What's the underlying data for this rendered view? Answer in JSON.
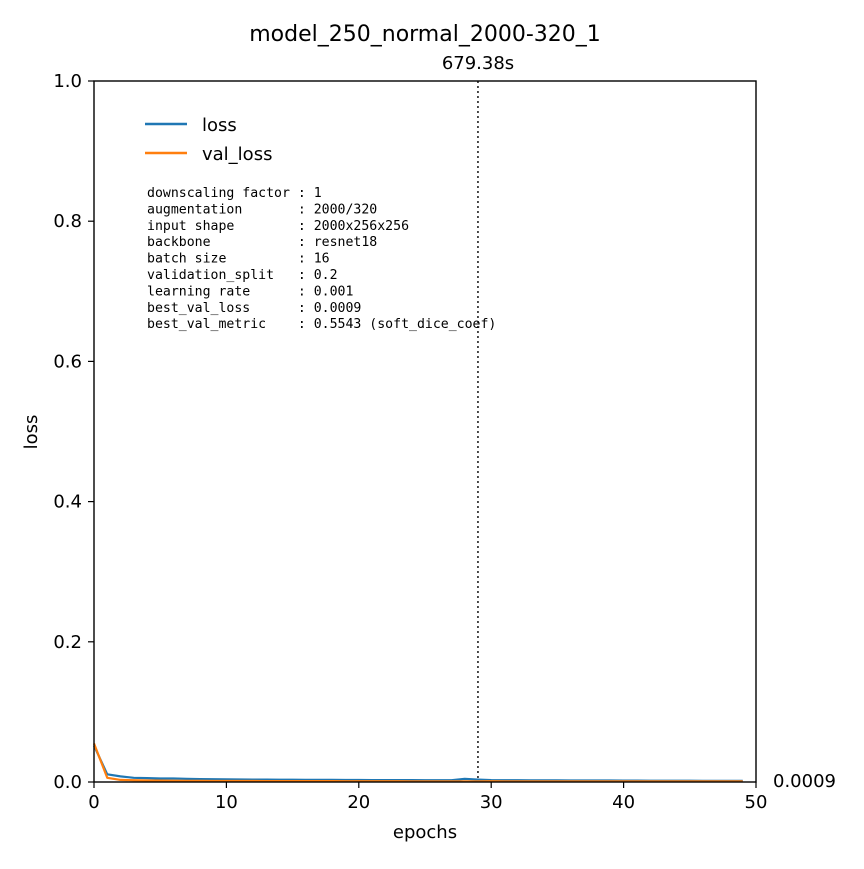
{
  "chart_data": {
    "type": "line",
    "title": "model_250_normal_2000-320_1",
    "xlabel": "epochs",
    "ylabel": "loss",
    "xlim": [
      0,
      50
    ],
    "ylim": [
      0.0,
      1.0
    ],
    "x_ticks": [
      "0",
      "10",
      "20",
      "30",
      "40",
      "50"
    ],
    "y_ticks": [
      "0.0",
      "0.2",
      "0.4",
      "0.6",
      "0.8",
      "1.0"
    ],
    "grid": false,
    "legend_position": "top-left",
    "vline": {
      "x": 29,
      "label": "679.38s",
      "style": "dotted"
    },
    "end_label": "0.0009",
    "series": [
      {
        "name": "loss",
        "color": "#1f77b4",
        "x": [
          0,
          1,
          2,
          3,
          4,
          5,
          6,
          7,
          8,
          9,
          10,
          11,
          12,
          13,
          14,
          15,
          16,
          17,
          18,
          19,
          20,
          21,
          22,
          23,
          24,
          25,
          26,
          27,
          28,
          29,
          30,
          31,
          32,
          33,
          34,
          35,
          36,
          37,
          38,
          39,
          40,
          41,
          42,
          43,
          44,
          45,
          46,
          47,
          48,
          49
        ],
        "values": [
          0.052,
          0.011,
          0.008,
          0.006,
          0.0055,
          0.005,
          0.005,
          0.0045,
          0.0042,
          0.004,
          0.0038,
          0.0036,
          0.0035,
          0.0034,
          0.0033,
          0.0032,
          0.0031,
          0.003,
          0.003,
          0.0029,
          0.0029,
          0.0028,
          0.0028,
          0.0027,
          0.0027,
          0.0026,
          0.0026,
          0.0025,
          0.0045,
          0.0035,
          0.0028,
          0.0026,
          0.0025,
          0.0024,
          0.0023,
          0.0023,
          0.0022,
          0.0022,
          0.0021,
          0.0021,
          0.002,
          0.002,
          0.0019,
          0.0019,
          0.0018,
          0.0018,
          0.0017,
          0.0017,
          0.0016,
          0.0016
        ]
      },
      {
        "name": "val_loss",
        "color": "#ff7f0e",
        "x": [
          0,
          1,
          2,
          3,
          4,
          5,
          6,
          7,
          8,
          9,
          10,
          11,
          12,
          13,
          14,
          15,
          16,
          17,
          18,
          19,
          20,
          21,
          22,
          23,
          24,
          25,
          26,
          27,
          28,
          29,
          30,
          31,
          32,
          33,
          34,
          35,
          36,
          37,
          38,
          39,
          40,
          41,
          42,
          43,
          44,
          45,
          46,
          47,
          48,
          49
        ],
        "values": [
          0.055,
          0.006,
          0.003,
          0.0025,
          0.0022,
          0.002,
          0.0018,
          0.0017,
          0.0016,
          0.0015,
          0.0015,
          0.0014,
          0.0014,
          0.0013,
          0.0013,
          0.0013,
          0.0012,
          0.0012,
          0.0012,
          0.0011,
          0.0011,
          0.0011,
          0.0011,
          0.0011,
          0.001,
          0.001,
          0.001,
          0.001,
          0.001,
          0.0009,
          0.0011,
          0.001,
          0.001,
          0.001,
          0.001,
          0.001,
          0.0009,
          0.0009,
          0.0009,
          0.0009,
          0.0009,
          0.0009,
          0.0009,
          0.0009,
          0.0009,
          0.0009,
          0.0009,
          0.0009,
          0.0009,
          0.0009
        ]
      }
    ],
    "info_box": [
      "downscaling factor : 1",
      "augmentation       : 2000/320",
      "input shape        : 2000x256x256",
      "backbone           : resnet18",
      "batch size         : 16",
      "validation_split   : 0.2",
      "learning rate      : 0.001",
      "best_val_loss      : 0.0009",
      "best_val_metric    : 0.5543 (soft_dice_coef)"
    ]
  }
}
